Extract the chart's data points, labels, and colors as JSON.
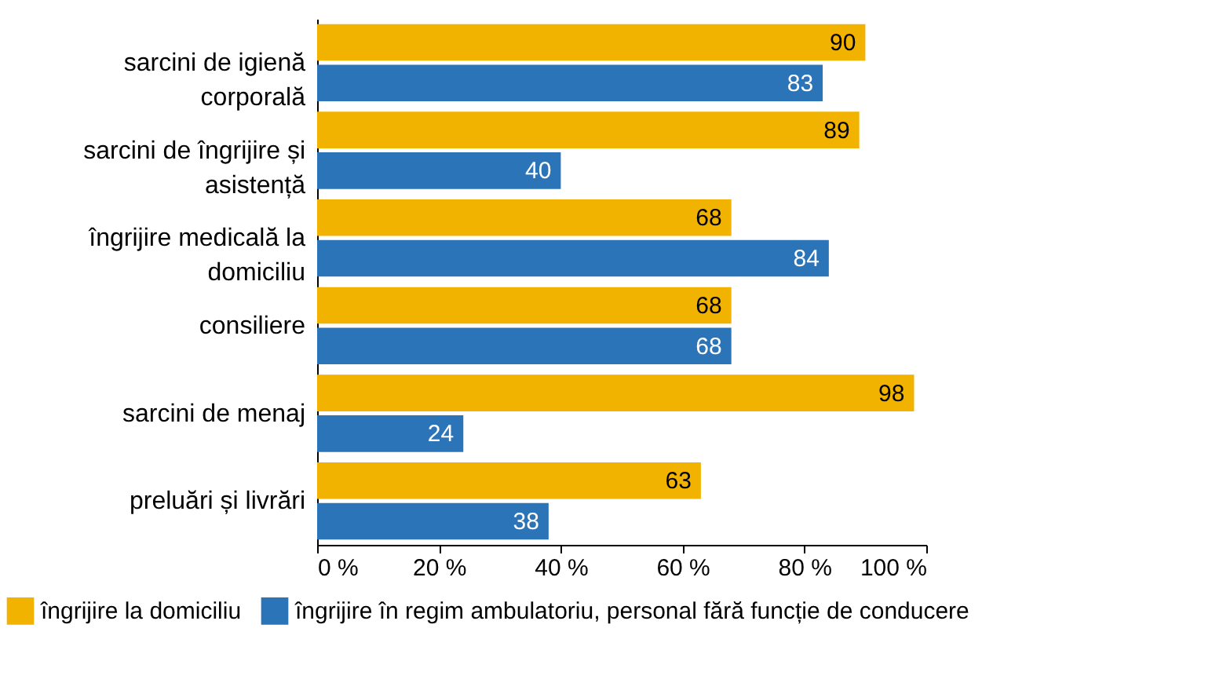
{
  "chart_data": {
    "type": "bar",
    "orientation": "horizontal",
    "categories": [
      "sarcini de igienă corporală",
      "sarcini de îngrijire și asistență",
      "îngrijire medicală la domiciliu",
      "consiliere",
      "sarcini de menaj",
      "preluări și livrări"
    ],
    "series": [
      {
        "name": "îngrijire la domiciliu",
        "color": "#f2b200",
        "values": [
          90,
          89,
          68,
          68,
          98,
          63
        ]
      },
      {
        "name": "îngrijire în regim ambulatoriu, personal fără funcție de conducere",
        "color": "#2b74b8",
        "values": [
          83,
          40,
          84,
          68,
          24,
          38
        ]
      }
    ],
    "xlim": [
      0,
      100
    ],
    "xticks": [
      {
        "value": 0,
        "label": "0 %"
      },
      {
        "value": 20,
        "label": "20 %"
      },
      {
        "value": 40,
        "label": "40 %"
      },
      {
        "value": 60,
        "label": "60 %"
      },
      {
        "value": 80,
        "label": "80 %"
      },
      {
        "value": 100,
        "label": "100 %"
      }
    ],
    "data_labels": true,
    "grid": false,
    "legend": "bottom left"
  }
}
